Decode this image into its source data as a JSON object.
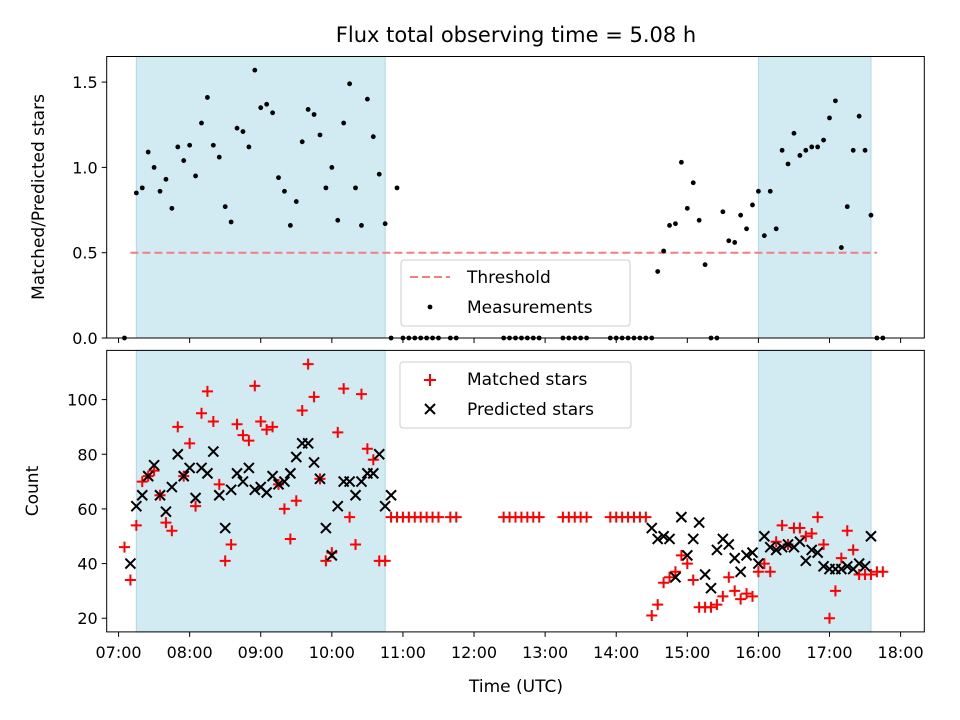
{
  "title": "Flux total observing time = 5.08 h",
  "colors": {
    "threshold": "#f08080",
    "measurement": "#000000",
    "matched": "#ff0000",
    "predicted": "#000000",
    "shade": "#add8e6"
  },
  "chart_data": [
    {
      "type": "scatter",
      "ylabel": "Matched/Predicted stars",
      "xlim": [
        "06:50",
        "18:20"
      ],
      "ylim": [
        0,
        1.65
      ],
      "yticks": [
        "0.0",
        "0.5",
        "1.0",
        "1.5"
      ],
      "shaded_intervals": [
        [
          "07:15",
          "10:45"
        ],
        [
          "16:00",
          "17:35"
        ]
      ],
      "threshold": {
        "name": "Threshold",
        "value": 0.5,
        "x_range": [
          "07:10",
          "17:40"
        ]
      },
      "legend": {
        "entries": [
          "Threshold",
          "Measurements"
        ],
        "location": "lower center"
      },
      "series": [
        {
          "name": "Measurements",
          "x": [
            "07:05",
            "07:15",
            "07:20",
            "07:25",
            "07:30",
            "07:35",
            "07:40",
            "07:45",
            "07:50",
            "07:55",
            "08:00",
            "08:05",
            "08:10",
            "08:15",
            "08:20",
            "08:25",
            "08:30",
            "08:35",
            "08:40",
            "08:45",
            "08:50",
            "08:55",
            "09:00",
            "09:05",
            "09:10",
            "09:15",
            "09:20",
            "09:25",
            "09:30",
            "09:35",
            "09:40",
            "09:45",
            "09:50",
            "09:55",
            "10:00",
            "10:05",
            "10:10",
            "10:15",
            "10:20",
            "10:25",
            "10:30",
            "10:35",
            "10:40",
            "10:45",
            "10:50",
            "10:55",
            "11:00",
            "11:05",
            "11:10",
            "11:15",
            "11:20",
            "11:25",
            "11:30",
            "11:40",
            "11:45",
            "12:25",
            "12:30",
            "12:35",
            "12:40",
            "12:45",
            "12:50",
            "12:55",
            "13:15",
            "13:20",
            "13:25",
            "13:30",
            "13:35",
            "13:55",
            "14:00",
            "14:05",
            "14:10",
            "14:15",
            "14:20",
            "14:25",
            "14:30",
            "14:35",
            "14:40",
            "14:45",
            "14:50",
            "14:55",
            "15:00",
            "15:05",
            "15:10",
            "15:15",
            "15:20",
            "15:25",
            "15:30",
            "15:35",
            "15:40",
            "15:45",
            "15:50",
            "15:55",
            "16:00",
            "16:05",
            "16:10",
            "16:15",
            "16:20",
            "16:25",
            "16:30",
            "16:35",
            "16:40",
            "16:45",
            "16:50",
            "16:55",
            "17:00",
            "17:05",
            "17:10",
            "17:15",
            "17:20",
            "17:25",
            "17:30",
            "17:35",
            "17:40",
            "17:45"
          ],
          "y": [
            0.0,
            0.85,
            0.88,
            1.09,
            1.0,
            0.86,
            0.93,
            0.76,
            1.12,
            1.04,
            1.13,
            0.95,
            1.26,
            1.41,
            1.13,
            1.06,
            0.77,
            0.68,
            1.23,
            1.21,
            1.12,
            1.57,
            1.35,
            1.37,
            1.32,
            0.94,
            0.86,
            0.66,
            0.8,
            1.15,
            1.34,
            1.31,
            1.19,
            0.88,
            1.0,
            0.69,
            1.26,
            1.49,
            0.88,
            0.66,
            1.4,
            1.18,
            0.96,
            0.67,
            0.0,
            0.88,
            0.0,
            0.0,
            0.0,
            0.0,
            0.0,
            0.0,
            0.0,
            0.0,
            0.0,
            0.0,
            0.0,
            0.0,
            0.0,
            0.0,
            0.0,
            0.0,
            0.0,
            0.0,
            0.0,
            0.0,
            0.0,
            0.0,
            0.0,
            0.0,
            0.0,
            0.0,
            0.0,
            0.0,
            0.0,
            0.39,
            0.51,
            0.66,
            0.67,
            1.03,
            0.76,
            0.91,
            0.69,
            0.43,
            0.0,
            0.0,
            0.74,
            0.57,
            0.56,
            0.72,
            0.64,
            0.78,
            0.86,
            0.6,
            0.86,
            0.64,
            1.1,
            1.02,
            1.2,
            1.07,
            1.1,
            1.12,
            1.12,
            1.16,
            1.29,
            1.39,
            0.53,
            0.77,
            1.1,
            1.3,
            1.1,
            0.72,
            0.0,
            0.0
          ]
        }
      ]
    },
    {
      "type": "scatter",
      "xlabel": "Time (UTC)",
      "ylabel": "Count",
      "xlim": [
        "06:50",
        "18:20"
      ],
      "ylim": [
        15,
        118
      ],
      "yticks": [
        "20",
        "40",
        "60",
        "80",
        "100"
      ],
      "xticks": [
        "07:00",
        "08:00",
        "09:00",
        "10:00",
        "11:00",
        "12:00",
        "13:00",
        "14:00",
        "15:00",
        "16:00",
        "17:00",
        "18:00"
      ],
      "shaded_intervals": [
        [
          "07:15",
          "10:45"
        ],
        [
          "16:00",
          "17:35"
        ]
      ],
      "legend": {
        "entries": [
          "Matched stars",
          "Predicted stars"
        ],
        "location": "upper center"
      },
      "series": [
        {
          "name": "Matched stars",
          "x": [
            "07:05",
            "07:10",
            "07:15",
            "07:20",
            "07:25",
            "07:30",
            "07:35",
            "07:40",
            "07:45",
            "07:50",
            "07:55",
            "08:00",
            "08:05",
            "08:10",
            "08:15",
            "08:20",
            "08:25",
            "08:30",
            "08:35",
            "08:40",
            "08:45",
            "08:50",
            "08:55",
            "09:00",
            "09:05",
            "09:10",
            "09:15",
            "09:20",
            "09:25",
            "09:30",
            "09:35",
            "09:40",
            "09:45",
            "09:50",
            "09:55",
            "10:00",
            "10:05",
            "10:10",
            "10:15",
            "10:20",
            "10:25",
            "10:30",
            "10:35",
            "10:40",
            "10:45",
            "10:50",
            "10:55",
            "11:00",
            "11:05",
            "11:10",
            "11:15",
            "11:20",
            "11:25",
            "11:30",
            "11:40",
            "11:45",
            "12:25",
            "12:30",
            "12:35",
            "12:40",
            "12:45",
            "12:50",
            "12:55",
            "13:15",
            "13:20",
            "13:25",
            "13:30",
            "13:35",
            "13:55",
            "14:00",
            "14:05",
            "14:10",
            "14:15",
            "14:20",
            "14:25",
            "14:30",
            "14:35",
            "14:40",
            "14:45",
            "14:50",
            "14:55",
            "15:00",
            "15:05",
            "15:10",
            "15:15",
            "15:20",
            "15:25",
            "15:30",
            "15:35",
            "15:40",
            "15:45",
            "15:50",
            "15:55",
            "16:00",
            "16:05",
            "16:10",
            "16:15",
            "16:20",
            "16:25",
            "16:30",
            "16:35",
            "16:40",
            "16:45",
            "16:50",
            "16:55",
            "17:00",
            "17:05",
            "17:10",
            "17:15",
            "17:20",
            "17:25",
            "17:30",
            "17:35",
            "17:40",
            "17:45"
          ],
          "y": [
            46,
            34,
            54,
            70,
            72,
            74,
            65,
            55,
            52,
            90,
            72,
            84,
            61,
            95,
            103,
            92,
            69,
            41,
            47,
            91,
            87,
            85,
            105,
            92,
            89,
            90,
            69,
            60,
            49,
            63,
            96,
            113,
            101,
            71,
            41,
            44,
            88,
            104,
            57,
            47,
            102,
            82,
            78,
            41,
            41,
            57,
            57,
            57,
            57,
            57,
            57,
            57,
            57,
            57,
            57,
            57,
            57,
            57,
            57,
            57,
            57,
            57,
            57,
            57,
            57,
            57,
            57,
            57,
            57,
            57,
            57,
            57,
            57,
            57,
            57,
            21,
            25,
            33,
            35,
            37,
            43,
            40,
            34,
            24,
            24,
            24,
            25,
            28,
            35,
            30,
            27,
            29,
            28,
            37,
            40,
            37,
            48,
            54,
            47,
            53,
            53,
            50,
            51,
            57,
            47,
            20,
            30,
            42,
            52,
            45,
            36,
            36,
            36,
            37,
            37
          ]
        },
        {
          "name": "Predicted stars",
          "x": [
            "07:10",
            "07:15",
            "07:20",
            "07:25",
            "07:30",
            "07:35",
            "07:40",
            "07:45",
            "07:50",
            "07:55",
            "08:00",
            "08:05",
            "08:10",
            "08:15",
            "08:20",
            "08:25",
            "08:30",
            "08:35",
            "08:40",
            "08:45",
            "08:50",
            "08:55",
            "09:00",
            "09:05",
            "09:10",
            "09:15",
            "09:20",
            "09:25",
            "09:30",
            "09:35",
            "09:40",
            "09:45",
            "09:50",
            "09:55",
            "10:00",
            "10:05",
            "10:10",
            "10:15",
            "10:20",
            "10:25",
            "10:30",
            "10:35",
            "10:40",
            "10:45",
            "10:50",
            "14:30",
            "14:35",
            "14:40",
            "14:45",
            "14:50",
            "14:55",
            "15:00",
            "15:05",
            "15:10",
            "15:15",
            "15:20",
            "15:25",
            "15:30",
            "15:35",
            "15:40",
            "15:45",
            "15:50",
            "15:55",
            "16:00",
            "16:05",
            "16:10",
            "16:15",
            "16:20",
            "16:25",
            "16:30",
            "16:35",
            "16:40",
            "16:45",
            "16:50",
            "16:55",
            "17:00",
            "17:05",
            "17:10",
            "17:15",
            "17:20",
            "17:25",
            "17:30",
            "17:35"
          ],
          "y": [
            40,
            61,
            65,
            72,
            76,
            65,
            59,
            68,
            80,
            72,
            75,
            64,
            75,
            73,
            81,
            65,
            53,
            67,
            73,
            70,
            75,
            67,
            68,
            66,
            72,
            69,
            70,
            73,
            79,
            84,
            84,
            77,
            71,
            53,
            43,
            61,
            70,
            70,
            65,
            70,
            73,
            73,
            80,
            61,
            65,
            53,
            49,
            50,
            49,
            35,
            57,
            43,
            49,
            55,
            36,
            31,
            45,
            49,
            47,
            42,
            37,
            43,
            44,
            40,
            50,
            46,
            45,
            46,
            47,
            46,
            48,
            41,
            45,
            44,
            39,
            38,
            38,
            38,
            39,
            38,
            40,
            39,
            50
          ]
        }
      ]
    }
  ]
}
